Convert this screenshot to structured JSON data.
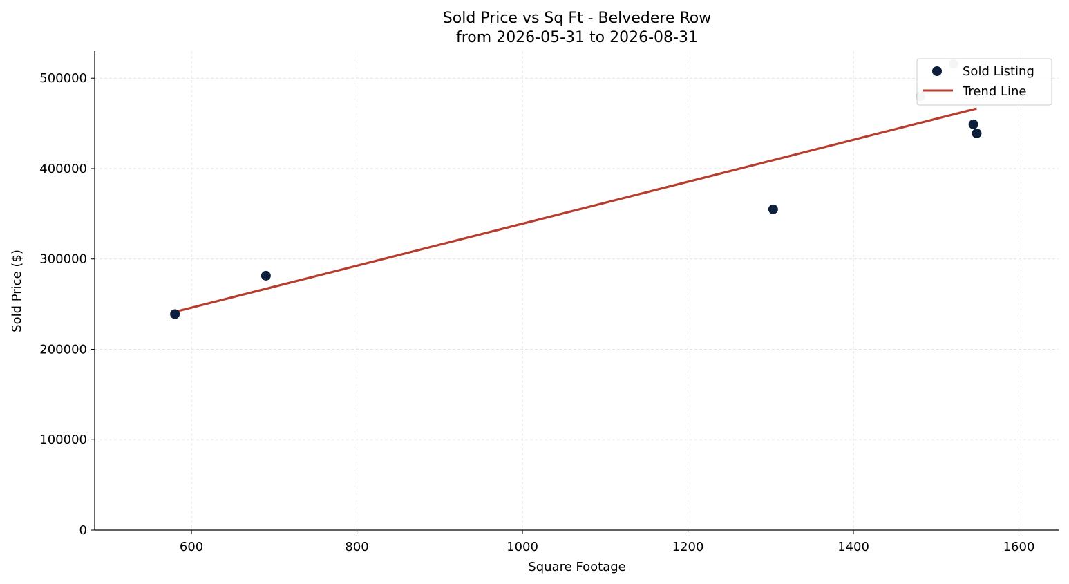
{
  "chart_data": {
    "type": "scatter",
    "title": "Sold Price vs Sq Ft - Belvedere Row",
    "subtitle": "from 2026-05-31 to 2026-08-31",
    "xlabel": "Square Footage",
    "ylabel": "Sold Price ($)",
    "xlim": [
      483,
      1648
    ],
    "ylim": [
      0,
      530000
    ],
    "xticks": [
      600,
      800,
      1000,
      1200,
      1400,
      1600
    ],
    "yticks": [
      0,
      100000,
      200000,
      300000,
      400000,
      500000
    ],
    "grid": true,
    "legend_position": "top-right",
    "series": [
      {
        "name": "Sold Listing",
        "kind": "scatter",
        "color": "#0d1f3c",
        "points": [
          {
            "x": 580,
            "y": 239000
          },
          {
            "x": 690,
            "y": 281500
          },
          {
            "x": 1303,
            "y": 355000
          },
          {
            "x": 1545,
            "y": 449000
          },
          {
            "x": 1549,
            "y": 439000
          }
        ]
      },
      {
        "name": "Trend Line",
        "kind": "line",
        "color": "#b83c2e",
        "points": [
          {
            "x": 580,
            "y": 241500
          },
          {
            "x": 1549,
            "y": 466500
          }
        ]
      }
    ],
    "faded_points": {
      "color": "#c9cdd4",
      "points": [
        {
          "x": 1481,
          "y": 480000
        },
        {
          "x": 1521,
          "y": 516000
        }
      ]
    }
  }
}
